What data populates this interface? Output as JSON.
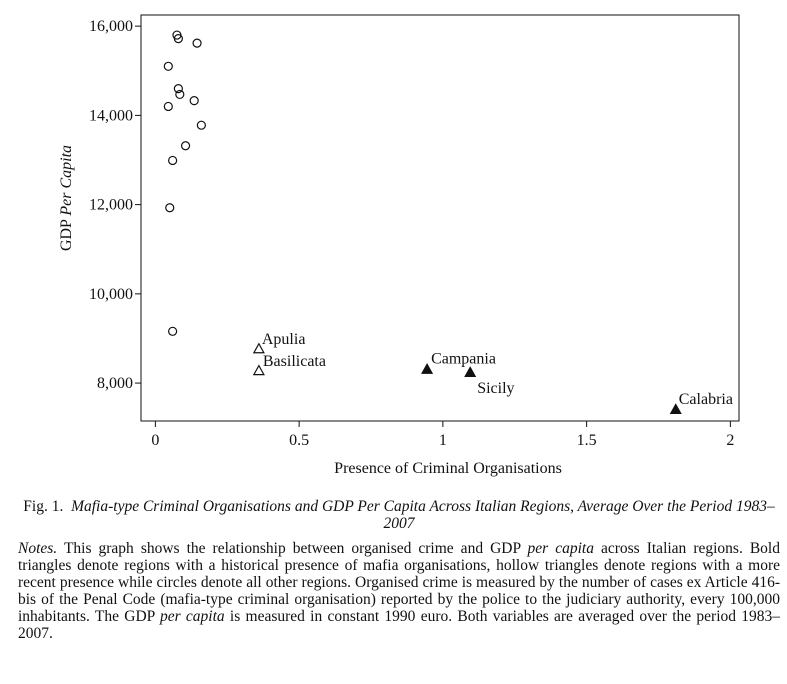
{
  "chart_data": {
    "type": "scatter",
    "xlabel": "Presence of Criminal Organisations",
    "ylabel_prefix": "GDP ",
    "ylabel_italic": "Per Capita",
    "xlim": [
      -0.05,
      2.03
    ],
    "ylim": [
      7150,
      16250
    ],
    "xticks": [
      0,
      0.5,
      1,
      1.5,
      2
    ],
    "xtick_labels": [
      "0",
      "0.5",
      "1",
      "1.5",
      "2"
    ],
    "yticks": [
      8000,
      10000,
      12000,
      14000,
      16000
    ],
    "ytick_labels": [
      "8,000",
      "10,000",
      "12,000",
      "14,000",
      "16,000"
    ],
    "series": [
      {
        "marker": "circle",
        "points": [
          {
            "x": 0.075,
            "y": 15800
          },
          {
            "x": 0.08,
            "y": 15720
          },
          {
            "x": 0.145,
            "y": 15620
          },
          {
            "x": 0.045,
            "y": 15100
          },
          {
            "x": 0.08,
            "y": 14600
          },
          {
            "x": 0.085,
            "y": 14470
          },
          {
            "x": 0.135,
            "y": 14330
          },
          {
            "x": 0.045,
            "y": 14200
          },
          {
            "x": 0.16,
            "y": 13780
          },
          {
            "x": 0.105,
            "y": 13320
          },
          {
            "x": 0.06,
            "y": 12990
          },
          {
            "x": 0.05,
            "y": 11930
          },
          {
            "x": 0.06,
            "y": 9160
          }
        ]
      },
      {
        "marker": "hollow-triangle",
        "points": [
          {
            "x": 0.36,
            "y": 8760,
            "label": "Apulia"
          },
          {
            "x": 0.36,
            "y": 8270,
            "label": "Basilicata"
          }
        ]
      },
      {
        "marker": "filled-triangle",
        "points": [
          {
            "x": 0.945,
            "y": 8300,
            "label": "Campania"
          },
          {
            "x": 1.095,
            "y": 8230,
            "label": "Sicily"
          },
          {
            "x": 1.81,
            "y": 7400,
            "label": "Calabria"
          }
        ]
      }
    ]
  },
  "caption": {
    "fig_label": "Fig. 1.",
    "fig_title": "Mafia-type Criminal Organisations and GDP Per Capita Across Italian Regions, Average Over the Period 1983–2007",
    "notes_label": "Notes.",
    "notes_a": "This graph shows the relationship between organised crime and GDP",
    "notes_em1": "per capita",
    "notes_b": "across Italian regions. Bold triangles denote regions with a historical presence of mafia organisations, hollow triangles denote regions with a more recent presence while circles denote all other regions. Organised crime is measured by the number of cases ex Article 416-bis of the Penal Code (mafia-type criminal organisation) reported by the police to the judiciary authority, every 100,000 inhabitants. The GDP",
    "notes_em2": "per capita",
    "notes_c": "is measured in constant 1990 euro. Both variables are averaged over the period 1983–2007."
  }
}
